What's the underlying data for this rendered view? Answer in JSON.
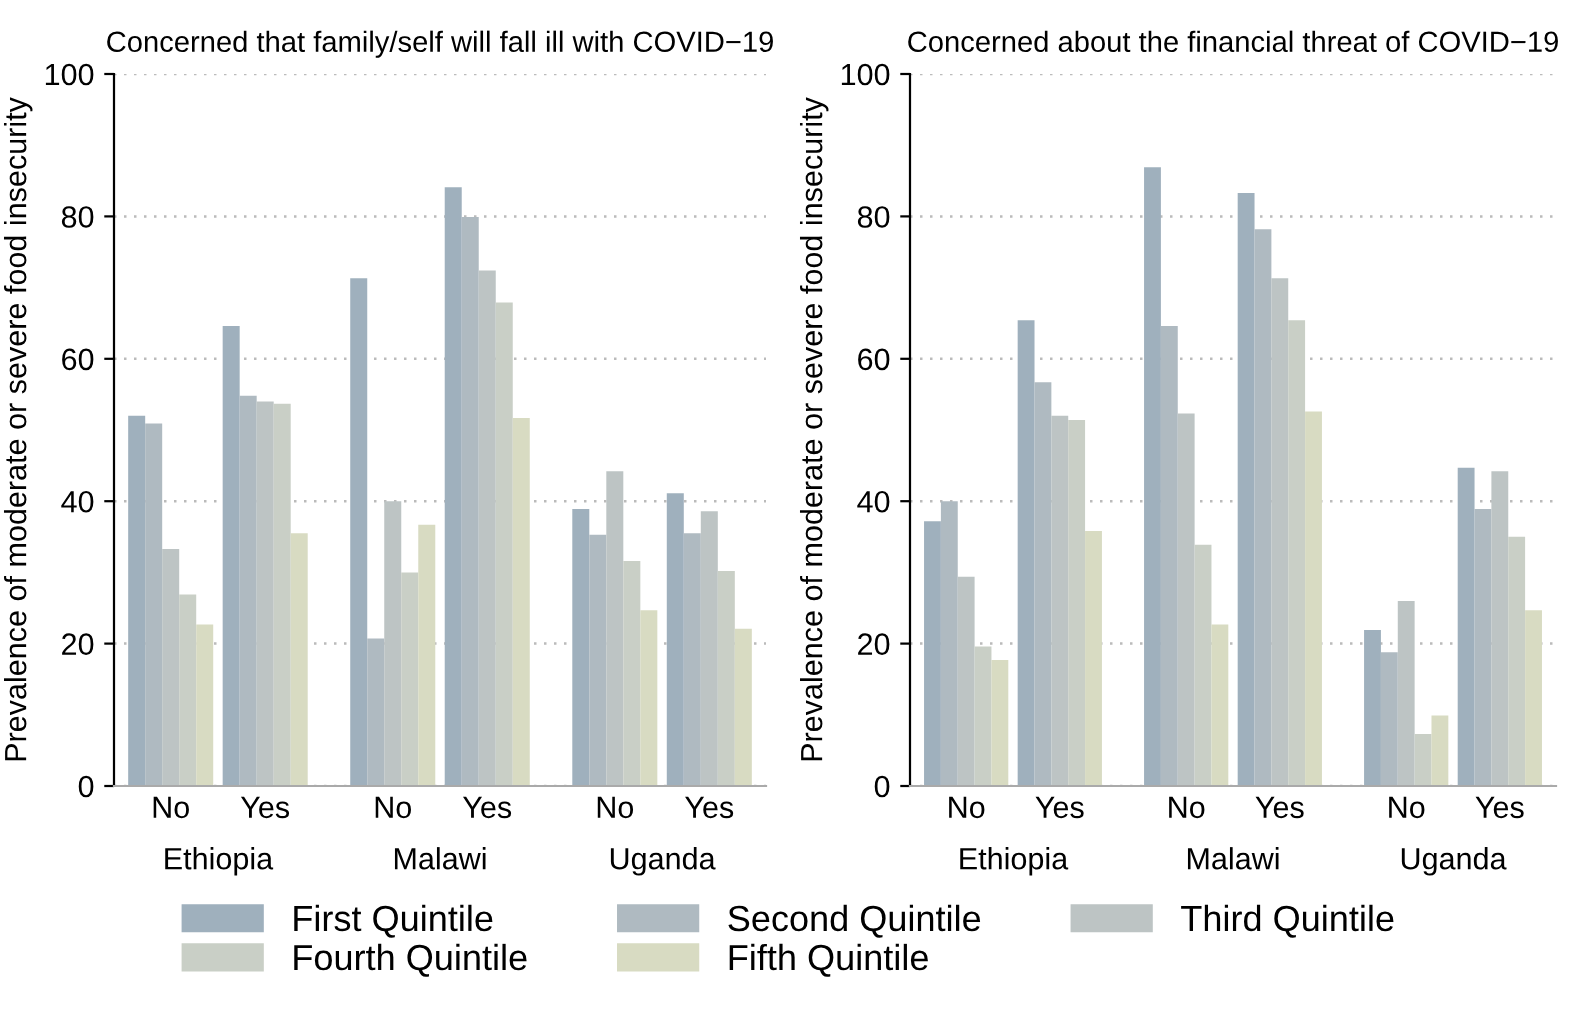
{
  "chart_data": [
    {
      "type": "bar",
      "title": "Concerned that family/self will fall ill with COVID−19",
      "ylabel": "Prevalence of moderate or severe food insecurity",
      "categories": [
        "No",
        "Yes",
        "No",
        "Yes",
        "No",
        "Yes"
      ],
      "annotations": [
        "Ethiopia",
        "Malawi",
        "Uganda"
      ],
      "ylim": [
        0,
        100
      ],
      "yticks": [
        0,
        20,
        40,
        60,
        80,
        100
      ],
      "grid": "y",
      "legend": "bottom",
      "series": [
        {
          "name": "First Quintile",
          "color": "#9fb0bd",
          "values": [
            52.0,
            64.6,
            71.3,
            84.1,
            38.9,
            41.1
          ]
        },
        {
          "name": "Second Quintile",
          "color": "#afbac1",
          "values": [
            50.9,
            54.8,
            20.7,
            79.9,
            35.3,
            35.5
          ]
        },
        {
          "name": "Third Quintile",
          "color": "#bdc4c4",
          "values": [
            33.3,
            54.0,
            40.0,
            72.4,
            44.2,
            38.6
          ]
        },
        {
          "name": "Fourth Quintile",
          "color": "#c9cfc6",
          "values": [
            26.9,
            53.7,
            30.0,
            67.9,
            31.6,
            30.2
          ]
        },
        {
          "name": "Fifth Quintile",
          "color": "#d8dbc2",
          "values": [
            22.7,
            35.5,
            36.7,
            51.7,
            24.7,
            22.1
          ]
        }
      ]
    },
    {
      "type": "bar",
      "title": "Concerned about the financial threat of COVID−19",
      "ylabel": "Prevalence of moderate or severe food insecurity",
      "categories": [
        "No",
        "Yes",
        "No",
        "Yes",
        "No",
        "Yes"
      ],
      "annotations": [
        "Ethiopia",
        "Malawi",
        "Uganda"
      ],
      "ylim": [
        0,
        100
      ],
      "yticks": [
        0,
        20,
        40,
        60,
        80,
        100
      ],
      "grid": "y",
      "series": [
        {
          "color": "#9fb0bd",
          "values": [
            37.2,
            65.4,
            86.9,
            83.3,
            21.9,
            44.7
          ]
        },
        {
          "color": "#afbac1",
          "values": [
            40.0,
            56.7,
            64.6,
            78.2,
            18.8,
            38.9
          ]
        },
        {
          "color": "#bdc4c4",
          "values": [
            29.4,
            52.0,
            52.3,
            71.3,
            26.0,
            44.2
          ]
        },
        {
          "color": "#c9cfc6",
          "values": [
            19.6,
            51.4,
            33.9,
            65.4,
            7.3,
            35.0
          ]
        },
        {
          "color": "#d8dbc2",
          "values": [
            17.7,
            35.8,
            22.7,
            52.6,
            9.9,
            24.7
          ]
        }
      ]
    }
  ]
}
